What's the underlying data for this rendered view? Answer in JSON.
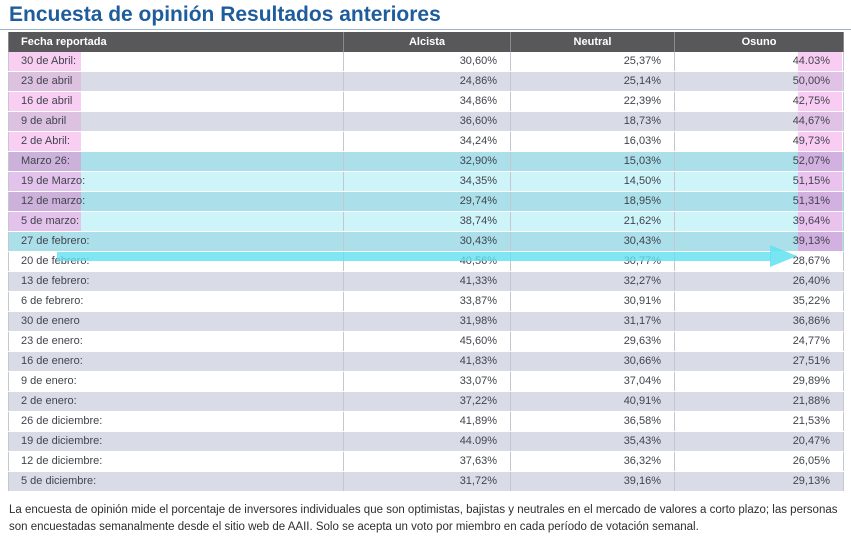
{
  "page": {
    "title": "Encuesta de opinión Resultados anteriores",
    "footer": "La encuesta de opinión mide el porcentaje de inversores individuales que son optimistas, bajistas y neutrales en el mercado de valores a corto plazo; las personas son encuestadas semanalmente desde el sitio web de AAII. Solo se acepta un voto por miembro en cada período de votación semanal."
  },
  "table": {
    "headers": [
      "Fecha reportada",
      "Alcista",
      "Neutral",
      "Osuno"
    ],
    "rows": [
      {
        "date": "30 de Abril:",
        "alcista": "30,60%",
        "neutral": "25,37%",
        "osuno": "44.03%"
      },
      {
        "date": "23 de abril",
        "alcista": "24,86%",
        "neutral": "25,14%",
        "osuno": "50,00%"
      },
      {
        "date": "16 de abril",
        "alcista": "34,86%",
        "neutral": "22,39%",
        "osuno": "42,75%"
      },
      {
        "date": "9 de abril",
        "alcista": "36,60%",
        "neutral": "18,73%",
        "osuno": "44,67%"
      },
      {
        "date": "2 de Abril:",
        "alcista": "34,24%",
        "neutral": "16,03%",
        "osuno": "49,73%"
      },
      {
        "date": "Marzo 26:",
        "alcista": "32,90%",
        "neutral": "15,03%",
        "osuno": "52,07%"
      },
      {
        "date": "19 de Marzo:",
        "alcista": "34,35%",
        "neutral": "14,50%",
        "osuno": "51,15%"
      },
      {
        "date": "12 de marzo:",
        "alcista": "29,74%",
        "neutral": "18,95%",
        "osuno": "51,31%"
      },
      {
        "date": "5 de marzo:",
        "alcista": "38,74%",
        "neutral": "21,62%",
        "osuno": "39,64%"
      },
      {
        "date": "27 de febrero:",
        "alcista": "30,43%",
        "neutral": "30,43%",
        "osuno": "39,13%"
      },
      {
        "date": "20 de febrero:",
        "alcista": "40,56%",
        "neutral": "30,77%",
        "osuno": "28,67%"
      },
      {
        "date": "13 de febrero:",
        "alcista": "41,33%",
        "neutral": "32,27%",
        "osuno": "26,40%"
      },
      {
        "date": "6 de febrero:",
        "alcista": "33,87%",
        "neutral": "30,91%",
        "osuno": "35,22%"
      },
      {
        "date": "30 de enero",
        "alcista": "31,98%",
        "neutral": "31,17%",
        "osuno": "36,86%"
      },
      {
        "date": "23 de enero:",
        "alcista": "45,60%",
        "neutral": "29,63%",
        "osuno": "24,77%"
      },
      {
        "date": "16 de enero:",
        "alcista": "41,83%",
        "neutral": "30,66%",
        "osuno": "27,51%"
      },
      {
        "date": "9 de enero:",
        "alcista": "33,07%",
        "neutral": "37,04%",
        "osuno": "29,89%"
      },
      {
        "date": "2 de enero:",
        "alcista": "37,22%",
        "neutral": "40,91%",
        "osuno": "21,88%"
      },
      {
        "date": "26 de diciembre:",
        "alcista": "41,89%",
        "neutral": "36,58%",
        "osuno": "21,53%"
      },
      {
        "date": "19 de diciembre:",
        "alcista": "44.09%",
        "neutral": "35,43%",
        "osuno": "20,47%"
      },
      {
        "date": "12 de diciembre:",
        "alcista": "37,63%",
        "neutral": "36,32%",
        "osuno": "26,05%"
      },
      {
        "date": "5 de diciembre:",
        "alcista": "31,72%",
        "neutral": "39,16%",
        "osuno": "29,13%"
      }
    ]
  },
  "annotations": {
    "pink_date_row_indices": [
      0,
      1,
      2,
      3,
      4,
      5,
      6,
      7,
      8
    ],
    "cyan_row_indices": [
      5,
      6,
      7,
      8,
      9
    ],
    "pink_osuno_row_indices": [
      0,
      1,
      2,
      3,
      4,
      5,
      6,
      7,
      8,
      9
    ],
    "arrow": "cyan-right-arrow",
    "colors": {
      "title": "#1e5c9b",
      "header_bg": "#58585a",
      "row_alt": "#d9dce6",
      "pink_highlight": "#f8cef2",
      "cyan_highlight": "#cdf4f9",
      "arrow_cyan": "#60e0f0"
    }
  }
}
